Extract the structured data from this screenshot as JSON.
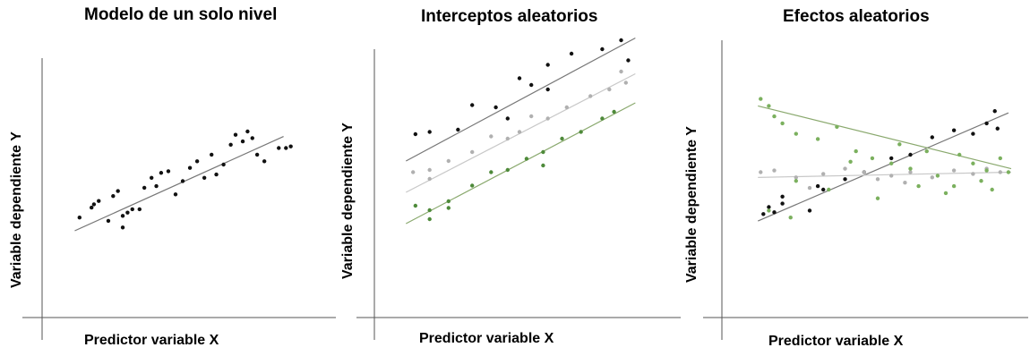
{
  "colors": {
    "black": "#111111",
    "gray": "#b0b0b0",
    "green": "#4e8a3a",
    "light_green": "#7bb05e",
    "axis": "#555555",
    "line_dark": "#777777",
    "line_light": "#c8c8c8",
    "line_green": "#8aa96e"
  },
  "panels": [
    {
      "title": "Modelo de un solo nivel",
      "ylabel": "Variable dependiente Y",
      "xlabel": "Predictor variable X"
    },
    {
      "title": "Interceptos aleatorios",
      "ylabel": "Variable dependiente Y",
      "xlabel": "Predictor variable X"
    },
    {
      "title": "Efectos aleatorios",
      "ylabel": "Variable dependiente Y",
      "xlabel": "Predictor variable X"
    }
  ],
  "chart_data": [
    {
      "type": "scatter",
      "title": "Modelo de un solo nivel",
      "xlabel": "Predictor variable X",
      "ylabel": "Variable dependiente Y",
      "series": [
        {
          "color": "black",
          "points": [
            [
              0.1,
              0.28
            ],
            [
              0.15,
              0.34
            ],
            [
              0.16,
              0.36
            ],
            [
              0.18,
              0.38
            ],
            [
              0.24,
              0.41
            ],
            [
              0.26,
              0.44
            ],
            [
              0.28,
              0.29
            ],
            [
              0.3,
              0.31
            ],
            [
              0.32,
              0.33
            ],
            [
              0.35,
              0.33
            ],
            [
              0.37,
              0.46
            ],
            [
              0.4,
              0.52
            ],
            [
              0.42,
              0.47
            ],
            [
              0.44,
              0.55
            ],
            [
              0.47,
              0.56
            ],
            [
              0.5,
              0.42
            ],
            [
              0.53,
              0.5
            ],
            [
              0.56,
              0.58
            ],
            [
              0.59,
              0.62
            ],
            [
              0.62,
              0.52
            ],
            [
              0.65,
              0.66
            ],
            [
              0.67,
              0.54
            ],
            [
              0.7,
              0.6
            ],
            [
              0.73,
              0.72
            ],
            [
              0.75,
              0.78
            ],
            [
              0.78,
              0.74
            ],
            [
              0.8,
              0.8
            ],
            [
              0.82,
              0.76
            ],
            [
              0.84,
              0.66
            ],
            [
              0.87,
              0.62
            ],
            [
              0.93,
              0.7
            ],
            [
              0.96,
              0.7
            ],
            [
              0.98,
              0.71
            ],
            [
              0.22,
              0.26
            ],
            [
              0.28,
              0.22
            ]
          ],
          "trend": [
            [
              0.08,
              0.2
            ],
            [
              0.95,
              0.77
            ]
          ]
        }
      ]
    },
    {
      "type": "scatter",
      "title": "Interceptos aleatorios",
      "xlabel": "Predictor variable X",
      "ylabel": "Variable dependiente Y",
      "series": [
        {
          "color": "black",
          "points": [
            [
              0.06,
              0.6
            ],
            [
              0.12,
              0.61
            ],
            [
              0.24,
              0.62
            ],
            [
              0.3,
              0.73
            ],
            [
              0.4,
              0.72
            ],
            [
              0.5,
              0.85
            ],
            [
              0.55,
              0.82
            ],
            [
              0.62,
              0.91
            ],
            [
              0.72,
              0.96
            ],
            [
              0.85,
              0.98
            ],
            [
              0.93,
              1.02
            ],
            [
              0.96,
              0.93
            ],
            [
              0.62,
              0.8
            ],
            [
              0.45,
              0.67
            ]
          ],
          "trend": [
            [
              0.02,
              0.48
            ],
            [
              0.99,
              1.03
            ]
          ]
        },
        {
          "color": "gray",
          "points": [
            [
              0.05,
              0.43
            ],
            [
              0.12,
              0.44
            ],
            [
              0.2,
              0.48
            ],
            [
              0.3,
              0.52
            ],
            [
              0.38,
              0.59
            ],
            [
              0.45,
              0.58
            ],
            [
              0.5,
              0.61
            ],
            [
              0.55,
              0.68
            ],
            [
              0.62,
              0.67
            ],
            [
              0.7,
              0.72
            ],
            [
              0.8,
              0.77
            ],
            [
              0.88,
              0.8
            ],
            [
              0.93,
              0.88
            ],
            [
              0.95,
              0.83
            ],
            [
              0.12,
              0.4
            ]
          ],
          "trend": [
            [
              0.02,
              0.34
            ],
            [
              0.99,
              0.87
            ]
          ]
        },
        {
          "color": "green",
          "points": [
            [
              0.06,
              0.28
            ],
            [
              0.12,
              0.26
            ],
            [
              0.2,
              0.3
            ],
            [
              0.3,
              0.37
            ],
            [
              0.38,
              0.43
            ],
            [
              0.45,
              0.44
            ],
            [
              0.53,
              0.49
            ],
            [
              0.6,
              0.52
            ],
            [
              0.68,
              0.58
            ],
            [
              0.76,
              0.61
            ],
            [
              0.85,
              0.67
            ],
            [
              0.9,
              0.7
            ],
            [
              0.12,
              0.22
            ],
            [
              0.2,
              0.27
            ],
            [
              0.6,
              0.46
            ]
          ],
          "trend": [
            [
              0.02,
              0.2
            ],
            [
              0.99,
              0.74
            ]
          ]
        }
      ]
    },
    {
      "type": "scatter",
      "title": "Efectos aleatorios",
      "xlabel": "Predictor variable X",
      "ylabel": "Variable dependiente Y",
      "series": [
        {
          "color": "black",
          "points": [
            [
              0.08,
              0.26
            ],
            [
              0.12,
              0.27
            ],
            [
              0.1,
              0.3
            ],
            [
              0.15,
              0.32
            ],
            [
              0.25,
              0.28
            ],
            [
              0.3,
              0.4
            ],
            [
              0.38,
              0.46
            ],
            [
              0.45,
              0.5
            ],
            [
              0.55,
              0.58
            ],
            [
              0.62,
              0.6
            ],
            [
              0.7,
              0.7
            ],
            [
              0.78,
              0.74
            ],
            [
              0.85,
              0.72
            ],
            [
              0.9,
              0.78
            ],
            [
              0.93,
              0.85
            ],
            [
              0.94,
              0.75
            ],
            [
              0.15,
              0.36
            ],
            [
              0.28,
              0.42
            ]
          ],
          "trend": [
            [
              0.06,
              0.22
            ],
            [
              0.98,
              0.84
            ]
          ]
        },
        {
          "color": "gray",
          "points": [
            [
              0.07,
              0.5
            ],
            [
              0.12,
              0.51
            ],
            [
              0.2,
              0.47
            ],
            [
              0.3,
              0.49
            ],
            [
              0.38,
              0.52
            ],
            [
              0.45,
              0.5
            ],
            [
              0.5,
              0.46
            ],
            [
              0.55,
              0.48
            ],
            [
              0.62,
              0.5
            ],
            [
              0.7,
              0.47
            ],
            [
              0.78,
              0.51
            ],
            [
              0.85,
              0.49
            ],
            [
              0.9,
              0.52
            ],
            [
              0.95,
              0.5
            ],
            [
              0.25,
              0.41
            ],
            [
              0.6,
              0.44
            ]
          ],
          "trend": [
            [
              0.06,
              0.47
            ],
            [
              0.99,
              0.5
            ]
          ]
        },
        {
          "color": "light_green",
          "points": [
            [
              0.07,
              0.92
            ],
            [
              0.1,
              0.88
            ],
            [
              0.12,
              0.82
            ],
            [
              0.15,
              0.78
            ],
            [
              0.2,
              0.72
            ],
            [
              0.28,
              0.69
            ],
            [
              0.35,
              0.76
            ],
            [
              0.42,
              0.62
            ],
            [
              0.48,
              0.58
            ],
            [
              0.55,
              0.55
            ],
            [
              0.62,
              0.52
            ],
            [
              0.68,
              0.62
            ],
            [
              0.72,
              0.48
            ],
            [
              0.8,
              0.6
            ],
            [
              0.85,
              0.55
            ],
            [
              0.9,
              0.51
            ],
            [
              0.95,
              0.58
            ],
            [
              0.98,
              0.5
            ],
            [
              0.2,
              0.45
            ],
            [
              0.32,
              0.4
            ],
            [
              0.5,
              0.35
            ],
            [
              0.65,
              0.42
            ],
            [
              0.75,
              0.38
            ],
            [
              0.88,
              0.45
            ],
            [
              0.1,
              0.28
            ],
            [
              0.18,
              0.24
            ],
            [
              0.4,
              0.56
            ],
            [
              0.58,
              0.66
            ],
            [
              0.78,
              0.42
            ],
            [
              0.92,
              0.4
            ]
          ],
          "trend": [
            [
              0.06,
              0.88
            ],
            [
              0.99,
              0.52
            ]
          ]
        }
      ]
    }
  ]
}
